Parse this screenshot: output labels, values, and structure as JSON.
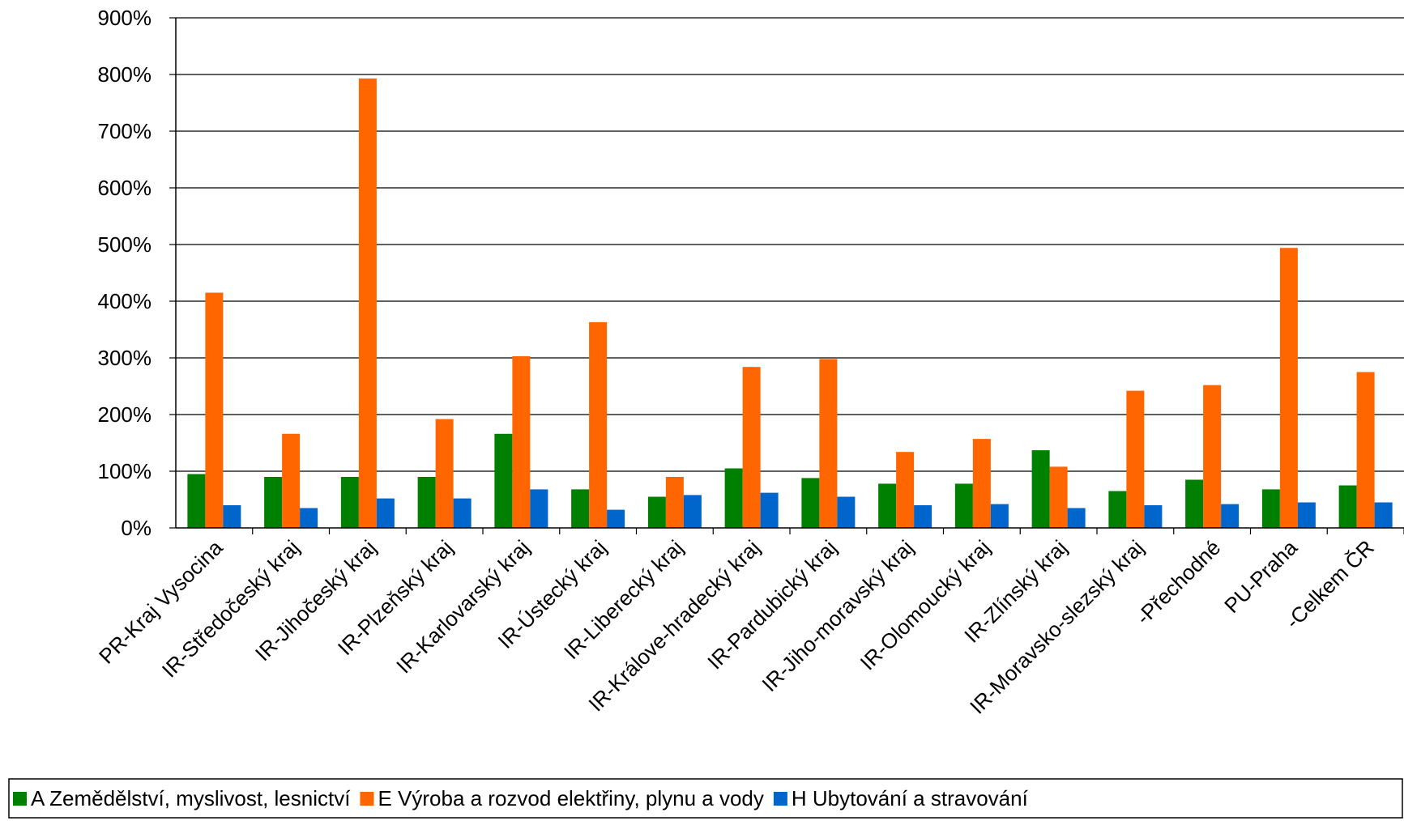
{
  "chart_data": {
    "type": "bar",
    "categories": [
      "PR-Kraj Vysocina",
      "IR-Středočeský kraj",
      "IR-Jihočeský kraj",
      "IR-Plzeňský kraj",
      "IR-Karlovarský kraj",
      "IR-Ústecký kraj",
      "IR-Liberecký kraj",
      "IR-Králove-hradecký kraj",
      "IR-Pardubický kraj",
      "IR-Jiho-moravský kraj",
      "IR-Olomoucký kraj",
      "IR-Zlínský kraj",
      "IR-Moravsko-slezský kraj",
      "-Přechodné",
      "PU-Praha",
      "-Celkem ČR"
    ],
    "series": [
      {
        "name": "A Zemědělství, myslivost, lesnictví",
        "color": "#008000",
        "values": [
          95,
          90,
          90,
          90,
          166,
          68,
          55,
          105,
          88,
          78,
          78,
          137,
          65,
          85,
          68,
          75
        ]
      },
      {
        "name": "E Výroba a rozvod elektřiny, plynu a vody",
        "color": "#ff6600",
        "values": [
          415,
          166,
          793,
          192,
          303,
          363,
          90,
          284,
          298,
          134,
          157,
          108,
          242,
          252,
          494,
          275
        ]
      },
      {
        "name": "H Ubytování a stravování",
        "color": "#0066cc",
        "values": [
          40,
          35,
          52,
          52,
          68,
          32,
          58,
          62,
          55,
          40,
          42,
          35,
          40,
          42,
          45,
          45
        ]
      }
    ],
    "yticks": [
      "0%",
      "100%",
      "200%",
      "300%",
      "400%",
      "500%",
      "600%",
      "700%",
      "800%",
      "900%"
    ],
    "ylim": [
      0,
      900
    ],
    "title": "",
    "xlabel": "",
    "ylabel": "",
    "grid": true,
    "legend_position": "bottom"
  }
}
